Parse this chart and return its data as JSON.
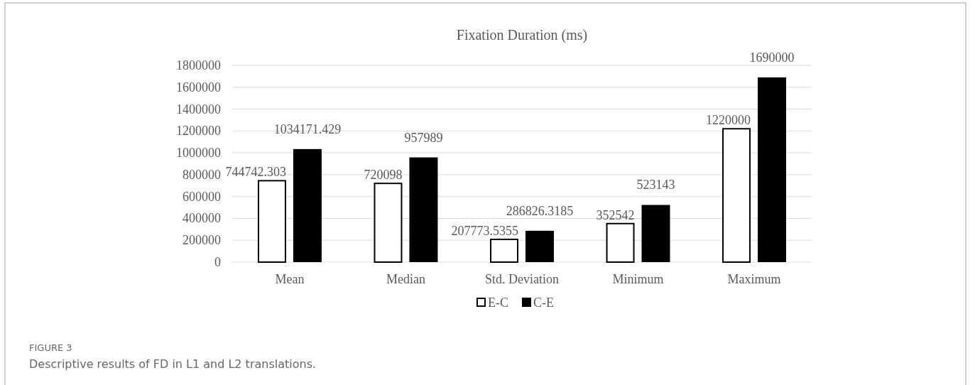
{
  "chart_data": {
    "type": "bar",
    "title": "Fixation Duration (ms)",
    "categories": [
      "Mean",
      "Median",
      "Std. Deviation",
      "Minimum",
      "Maximum"
    ],
    "series": [
      {
        "name": "E-C",
        "color": "#ffffff",
        "values": [
          744742.303,
          720098,
          207773.5355,
          352542,
          1220000
        ]
      },
      {
        "name": "C-E",
        "color": "#000000",
        "values": [
          1034171.429,
          957989,
          286826.3185,
          523143,
          1690000
        ]
      }
    ],
    "ylim": [
      0,
      1800000
    ],
    "yticks": [
      0,
      200000,
      400000,
      600000,
      800000,
      1000000,
      1200000,
      1400000,
      1600000,
      1800000
    ],
    "grid": "y",
    "legend": "bottom",
    "data_labels": true,
    "annotations": [
      "FIGURE 3",
      "Descriptive results of FD in L1 and L2 translations."
    ]
  }
}
